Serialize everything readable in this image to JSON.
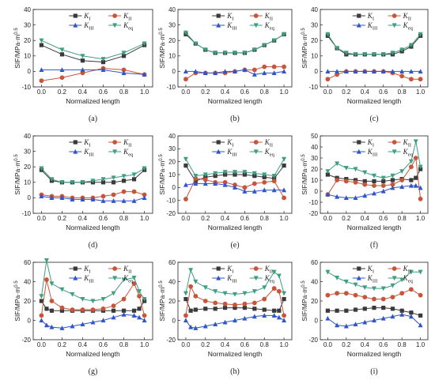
{
  "chart_data": [
    {
      "id": "a",
      "label": "(a)",
      "type": "line",
      "xlabel": "Normalized length",
      "ylabel": "SIF/MPa·m^0.5",
      "xlim": [
        0,
        1
      ],
      "ylim": [
        -10,
        40
      ],
      "x": [
        0,
        0.2,
        0.4,
        0.6,
        0.8,
        1.0
      ],
      "xticks": [
        "0.0",
        "0.2",
        "0.4",
        "0.6",
        "0.8",
        "1.0"
      ],
      "yticks": [
        -10,
        0,
        10,
        20,
        30,
        40
      ],
      "series": [
        {
          "name": "K_I",
          "values": [
            17,
            11,
            7,
            6,
            10,
            17
          ]
        },
        {
          "name": "K_II",
          "values": [
            -6,
            -4,
            -1,
            2,
            1,
            -2
          ]
        },
        {
          "name": "K_III",
          "values": [
            1,
            1,
            1,
            1,
            -1,
            -2
          ]
        },
        {
          "name": "K_eq",
          "values": [
            20,
            14,
            10,
            8,
            12,
            18
          ]
        }
      ]
    },
    {
      "id": "b",
      "label": "(b)",
      "type": "line",
      "xlabel": "Normalized length",
      "ylabel": "SIF/MPa·m^0.5",
      "xlim": [
        0,
        1
      ],
      "ylim": [
        -10,
        40
      ],
      "x": [
        0,
        0.1,
        0.2,
        0.3,
        0.4,
        0.5,
        0.6,
        0.7,
        0.8,
        0.9,
        1.0
      ],
      "xticks": [
        "0.0",
        "0.2",
        "0.4",
        "0.6",
        "0.8",
        "1.0"
      ],
      "yticks": [
        -10,
        0,
        10,
        20,
        30,
        40
      ],
      "series": [
        {
          "name": "K_I",
          "values": [
            24,
            18,
            14,
            12,
            12,
            12,
            12,
            14,
            17,
            20,
            24
          ]
        },
        {
          "name": "K_II",
          "values": [
            -5,
            -1,
            -1,
            -1,
            -1,
            0,
            1,
            1,
            3,
            3,
            3
          ]
        },
        {
          "name": "K_III",
          "values": [
            0,
            0,
            -1,
            -1,
            0,
            0,
            1,
            -2,
            -1,
            -1,
            0
          ]
        },
        {
          "name": "K_eq",
          "values": [
            25,
            18,
            14,
            12,
            12,
            12,
            12,
            14,
            17,
            20,
            24
          ]
        }
      ]
    },
    {
      "id": "c",
      "label": "(c)",
      "type": "line",
      "xlabel": "Normalized length",
      "ylabel": "SIF/MPa·m^0.5",
      "xlim": [
        0,
        1
      ],
      "ylim": [
        -10,
        40
      ],
      "x": [
        0,
        0.1,
        0.2,
        0.3,
        0.4,
        0.5,
        0.6,
        0.7,
        0.8,
        0.9,
        1.0
      ],
      "xticks": [
        "0.0",
        "0.2",
        "0.4",
        "0.6",
        "0.8",
        "1.0"
      ],
      "yticks": [
        -10,
        0,
        10,
        20,
        30,
        40
      ],
      "series": [
        {
          "name": "K_I",
          "values": [
            23,
            15,
            11,
            11,
            11,
            11,
            11,
            11,
            13,
            16,
            23
          ]
        },
        {
          "name": "K_II",
          "values": [
            -5,
            -2,
            0,
            0,
            0,
            0,
            0,
            -1,
            -3,
            -5,
            -5
          ]
        },
        {
          "name": "K_III",
          "values": [
            0,
            0,
            0,
            0,
            0,
            0,
            0,
            0,
            0,
            0,
            0
          ]
        },
        {
          "name": "K_eq",
          "values": [
            24,
            15,
            12,
            11,
            11,
            11,
            11,
            12,
            14,
            17,
            24
          ]
        }
      ]
    },
    {
      "id": "d",
      "label": "(d)",
      "type": "line",
      "xlabel": "Normalized length",
      "ylabel": "SIF/MPa·m^0.5",
      "xlim": [
        0,
        1
      ],
      "ylim": [
        -10,
        40
      ],
      "x": [
        0,
        0.1,
        0.2,
        0.3,
        0.4,
        0.5,
        0.6,
        0.7,
        0.8,
        0.9,
        1.0
      ],
      "xticks": [
        "0.0",
        "0.2",
        "0.4",
        "0.6",
        "0.8",
        "1.0"
      ],
      "yticks": [
        -10,
        0,
        10,
        20,
        30,
        40
      ],
      "series": [
        {
          "name": "K_I",
          "values": [
            18,
            11,
            10,
            10,
            10,
            10,
            10,
            10,
            11,
            12,
            18
          ]
        },
        {
          "name": "K_II",
          "values": [
            2,
            1,
            1,
            0,
            0,
            0,
            1,
            2,
            4,
            4,
            2
          ]
        },
        {
          "name": "K_III",
          "values": [
            1,
            0,
            0,
            -1,
            -1,
            -1,
            -2,
            -2,
            -2,
            -2,
            0
          ]
        },
        {
          "name": "K_eq",
          "values": [
            19,
            12,
            10,
            10,
            10,
            11,
            12,
            13,
            14,
            15,
            19
          ]
        }
      ]
    },
    {
      "id": "e",
      "label": "(e)",
      "type": "line",
      "xlabel": "Normalized length",
      "ylabel": "SIF/MPa·m^0.5",
      "xlim": [
        0,
        1
      ],
      "ylim": [
        -20,
        40
      ],
      "x": [
        0,
        0.1,
        0.2,
        0.3,
        0.4,
        0.5,
        0.6,
        0.7,
        0.8,
        0.9,
        1.0
      ],
      "xticks": [
        "0.0",
        "0.2",
        "0.4",
        "0.6",
        "0.8",
        "1.0"
      ],
      "yticks": [
        -20,
        -10,
        0,
        10,
        20,
        30,
        40
      ],
      "series": [
        {
          "name": "K_I",
          "values": [
            17,
            5,
            8,
            9,
            10,
            10,
            10,
            9,
            8,
            7,
            17
          ]
        },
        {
          "name": "K_II",
          "values": [
            -9,
            7,
            6,
            4,
            4,
            2,
            0,
            3,
            4,
            5,
            -8
          ]
        },
        {
          "name": "K_III",
          "values": [
            2,
            3,
            3,
            3,
            2,
            0,
            -3,
            -3,
            -2,
            -2,
            -2
          ]
        },
        {
          "name": "K_eq",
          "values": [
            22,
            9,
            10,
            11,
            12,
            12,
            12,
            11,
            10,
            9,
            22
          ]
        }
      ]
    },
    {
      "id": "f",
      "label": "(f)",
      "type": "line",
      "xlabel": "Normalized length",
      "ylabel": "SIF/MPa·m^0.5",
      "xlim": [
        0,
        1
      ],
      "ylim": [
        -20,
        50
      ],
      "x": [
        0,
        0.1,
        0.2,
        0.3,
        0.4,
        0.5,
        0.6,
        0.7,
        0.8,
        0.9,
        0.95,
        1.0
      ],
      "xticks": [
        "0.0",
        "0.2",
        "0.4",
        "0.6",
        "0.8",
        "1.0"
      ],
      "yticks": [
        -20,
        -10,
        0,
        10,
        20,
        30,
        40,
        50
      ],
      "series": [
        {
          "name": "K_I",
          "values": [
            15,
            12,
            11,
            10,
            9,
            9,
            9,
            10,
            11,
            10,
            12,
            20
          ]
        },
        {
          "name": "K_II",
          "values": [
            -3,
            10,
            9,
            8,
            6,
            5,
            5,
            6,
            10,
            22,
            30,
            -7
          ]
        },
        {
          "name": "K_III",
          "values": [
            -3,
            -5,
            -6,
            -6,
            -4,
            -2,
            0,
            3,
            4,
            5,
            5,
            3
          ]
        },
        {
          "name": "K_eq",
          "values": [
            18,
            25,
            21,
            20,
            17,
            14,
            12,
            14,
            18,
            27,
            45,
            22
          ]
        }
      ]
    },
    {
      "id": "g",
      "label": "(g)",
      "type": "line",
      "xlabel": "Normalized length",
      "ylabel": "SIF/MPa·m^0.5",
      "xlim": [
        0,
        1
      ],
      "ylim": [
        -20,
        60
      ],
      "x": [
        0,
        0.05,
        0.1,
        0.2,
        0.3,
        0.4,
        0.5,
        0.6,
        0.7,
        0.8,
        0.9,
        0.95,
        1.0
      ],
      "xticks": [
        "0.0",
        "0.2",
        "0.4",
        "0.6",
        "0.8",
        "1.0"
      ],
      "yticks": [
        -20,
        0,
        20,
        40,
        60
      ],
      "series": [
        {
          "name": "K_I",
          "values": [
            20,
            12,
            10,
            10,
            10,
            10,
            10,
            10,
            10,
            10,
            10,
            12,
            20
          ]
        },
        {
          "name": "K_II",
          "values": [
            5,
            42,
            20,
            13,
            11,
            11,
            11,
            12,
            15,
            22,
            38,
            25,
            5
          ]
        },
        {
          "name": "K_III",
          "values": [
            0,
            -5,
            -7,
            -8,
            -6,
            -4,
            -2,
            0,
            3,
            6,
            5,
            3,
            0
          ]
        },
        {
          "name": "K_eq",
          "values": [
            25,
            62,
            38,
            32,
            27,
            22,
            20,
            22,
            28,
            42,
            44,
            30,
            22
          ]
        }
      ]
    },
    {
      "id": "h",
      "label": "(h)",
      "type": "line",
      "xlabel": "Normalized length",
      "ylabel": "SIF/MPa·m^0.5",
      "xlim": [
        0,
        1
      ],
      "ylim": [
        -20,
        60
      ],
      "x": [
        0,
        0.05,
        0.1,
        0.2,
        0.3,
        0.4,
        0.5,
        0.6,
        0.7,
        0.8,
        0.9,
        0.95,
        1.0
      ],
      "xticks": [
        "0.0",
        "0.2",
        "0.4",
        "0.6",
        "0.8",
        "1.0"
      ],
      "yticks": [
        -20,
        0,
        20,
        40,
        60
      ],
      "series": [
        {
          "name": "K_I",
          "values": [
            22,
            10,
            11,
            12,
            12,
            13,
            13,
            13,
            12,
            11,
            10,
            10,
            22
          ]
        },
        {
          "name": "K_II",
          "values": [
            5,
            35,
            25,
            20,
            18,
            17,
            16,
            17,
            18,
            22,
            33,
            30,
            5
          ]
        },
        {
          "name": "K_III",
          "values": [
            0,
            -7,
            -8,
            -6,
            -4,
            -2,
            0,
            2,
            4,
            5,
            5,
            3,
            0
          ]
        },
        {
          "name": "K_eq",
          "values": [
            28,
            52,
            40,
            34,
            30,
            28,
            27,
            28,
            30,
            34,
            50,
            46,
            28
          ]
        }
      ]
    },
    {
      "id": "i",
      "label": "(i)",
      "type": "line",
      "xlabel": "Normalized length",
      "ylabel": "SIF/MPa·m^0.5",
      "xlim": [
        0,
        1
      ],
      "ylim": [
        -20,
        60
      ],
      "x": [
        0,
        0.1,
        0.2,
        0.3,
        0.4,
        0.5,
        0.6,
        0.7,
        0.8,
        0.9,
        1.0
      ],
      "xticks": [
        "0.0",
        "0.2",
        "0.4",
        "0.6",
        "0.8",
        "1.0"
      ],
      "yticks": [
        -20,
        0,
        20,
        40,
        60
      ],
      "series": [
        {
          "name": "K_I",
          "values": [
            10,
            10,
            10,
            11,
            12,
            13,
            13,
            12,
            10,
            8,
            5
          ]
        },
        {
          "name": "K_II",
          "values": [
            26,
            28,
            28,
            26,
            24,
            22,
            22,
            24,
            28,
            32,
            26
          ]
        },
        {
          "name": "K_III",
          "values": [
            2,
            -5,
            -6,
            -4,
            -2,
            0,
            2,
            4,
            6,
            4,
            -5
          ]
        },
        {
          "name": "K_eq",
          "values": [
            50,
            44,
            40,
            37,
            34,
            33,
            33,
            36,
            42,
            50,
            50
          ]
        }
      ]
    }
  ],
  "legend": {
    "k1": "K",
    "k1_sub": "I",
    "k2": "K",
    "k2_sub": "II",
    "k3": "K",
    "k3_sub": "III",
    "keq": "K",
    "keq_sub": "eq"
  },
  "colors": {
    "K_I": "#3a3a3a",
    "K_II": "#c8553a",
    "K_III": "#2f55c9",
    "K_eq": "#3d9e82"
  }
}
